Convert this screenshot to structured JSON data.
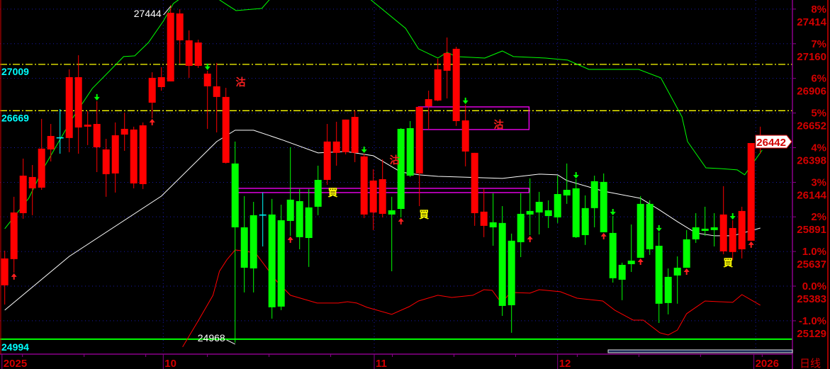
{
  "chart_data": {
    "type": "candlestick",
    "period_label": "日线",
    "colors": {
      "up": "#ff0000",
      "down": "#00ff00",
      "flat": "#00ffff",
      "ma": "#ffffff",
      "upper_band": "#00ff00",
      "lower_band": "#ff0000",
      "ref_line": "#ffff00",
      "support_line": "#00ff00",
      "zone_box": "#ff00ff",
      "grid": "#1a1aaa",
      "axis_border": "#8a008a"
    },
    "y_axis": {
      "base_price": 25383,
      "ticks": [
        {
          "pct": "8%",
          "price": "27414",
          "value": 27414
        },
        {
          "pct": "7%",
          "price": "27160",
          "value": 27160
        },
        {
          "pct": "6%",
          "price": "26906",
          "value": 26906
        },
        {
          "pct": "5%",
          "price": "26652",
          "value": 26652
        },
        {
          "pct": "4%",
          "price": "26398",
          "value": 26398
        },
        {
          "pct": "3%",
          "price": "26144",
          "value": 26144
        },
        {
          "pct": "2%",
          "price": "25891",
          "value": 25891
        },
        {
          "pct": "1.0%",
          "price": "25637",
          "value": 25637
        },
        {
          "pct": "0.0%",
          "price": "25383",
          "value": 25383
        },
        {
          "pct": "-1.0%",
          "price": "25129",
          "value": 25129
        }
      ],
      "grid": true
    },
    "x_axis": {
      "labels": [
        {
          "label": "2025",
          "index": 0.7
        },
        {
          "label": "10",
          "index": 18.2
        },
        {
          "label": "11",
          "index": 41.1
        },
        {
          "label": "12",
          "index": 61
        },
        {
          "label": "2026",
          "index": 82.3
        }
      ],
      "grid_at": [
        18.2,
        41.1,
        61,
        82.5
      ]
    },
    "current_price": {
      "label": "26442",
      "value": 26442
    },
    "candles_ohlc": [
      [
        25389,
        25643,
        25248,
        25586
      ],
      [
        25581,
        26038,
        25482,
        25923
      ],
      [
        25918,
        26318,
        25877,
        26193
      ],
      [
        26100,
        26271,
        25903,
        26183
      ],
      [
        26105,
        26609,
        26089,
        26391
      ],
      [
        26385,
        26572,
        26297,
        26484
      ],
      [
        26474,
        26681,
        26354,
        26474
      ],
      [
        26469,
        26972,
        26365,
        26915
      ],
      [
        26546,
        27076,
        26354,
        26915
      ],
      [
        26552,
        26666,
        26417,
        26567
      ],
      [
        26401,
        26739,
        26219,
        26572
      ],
      [
        26204,
        26463,
        26038,
        26385
      ],
      [
        26209,
        26583,
        26069,
        26489
      ],
      [
        26494,
        26655,
        26375,
        26536
      ],
      [
        26136,
        26552,
        26100,
        26531
      ],
      [
        26131,
        26583,
        26095,
        26562
      ],
      [
        26728,
        26951,
        26614,
        26910
      ],
      [
        26842,
        26988,
        26816,
        26915
      ],
      [
        26884,
        27444,
        26884,
        27387
      ],
      [
        27185,
        27413,
        27014,
        27382
      ],
      [
        26998,
        27258,
        26910,
        27185
      ],
      [
        26998,
        27190,
        26983,
        27169
      ],
      [
        26848,
        26962,
        26536,
        26941
      ],
      [
        26770,
        27019,
        26510,
        26848
      ],
      [
        26287,
        26837,
        26282,
        26770
      ],
      [
        26282,
        26443,
        24968,
        25814
      ],
      [
        25814,
        26043,
        25337,
        25518
      ],
      [
        25903,
        26001,
        25337,
        25513
      ],
      [
        25908,
        26069,
        25674,
        25908
      ],
      [
        25908,
        26022,
        25145,
        25228
      ],
      [
        25866,
        25980,
        25207,
        25233
      ],
      [
        26017,
        26401,
        25752,
        25861
      ],
      [
        26006,
        26095,
        25653,
        25742
      ],
      [
        25960,
        26095,
        25524,
        25736
      ],
      [
        26162,
        26266,
        25903,
        25965
      ],
      [
        26162,
        26572,
        26126,
        26443
      ],
      [
        26360,
        26588,
        26266,
        26443
      ],
      [
        26365,
        26604,
        26349,
        26604
      ],
      [
        26360,
        26671,
        26292,
        26624
      ],
      [
        25908,
        26354,
        25882,
        26334
      ],
      [
        25923,
        26240,
        25794,
        26157
      ],
      [
        25913,
        26313,
        25887,
        26167
      ],
      [
        25939,
        26038,
        25492,
        25908
      ],
      [
        26536,
        26541,
        25887,
        25949
      ],
      [
        26541,
        26593,
        26183,
        26193
      ],
      [
        26209,
        26697,
        25970,
        26697
      ],
      [
        26702,
        26816,
        26531,
        26754
      ],
      [
        26744,
        27050,
        26739,
        26972
      ],
      [
        26962,
        27206,
        26759,
        27092
      ],
      [
        26593,
        27138,
        26557,
        27123
      ],
      [
        26370,
        26713,
        26261,
        26598
      ],
      [
        25918,
        26360,
        25825,
        26360
      ],
      [
        25825,
        26095,
        25742,
        25929
      ],
      [
        25851,
        26064,
        25679,
        25814
      ],
      [
        25846,
        25970,
        25165,
        25238
      ],
      [
        25716,
        25768,
        25041,
        25243
      ],
      [
        25913,
        26064,
        25596,
        25705
      ],
      [
        25934,
        26173,
        25757,
        25908
      ],
      [
        26001,
        26074,
        25762,
        25923
      ],
      [
        25939,
        26012,
        25809,
        25897
      ],
      [
        26058,
        26193,
        25846,
        25887
      ],
      [
        26089,
        26282,
        25986,
        26048
      ],
      [
        26100,
        26167,
        25736,
        25742
      ],
      [
        25955,
        26048,
        25685,
        25757
      ],
      [
        26152,
        26193,
        25814,
        25955
      ],
      [
        26147,
        26209,
        25778,
        25778
      ],
      [
        25773,
        25897,
        25409,
        25441
      ],
      [
        25539,
        25555,
        25280,
        25430
      ],
      [
        25570,
        25835,
        25487,
        25544
      ],
      [
        25986,
        26043,
        25591,
        25591
      ],
      [
        25986,
        26012,
        25612,
        25653
      ],
      [
        25679,
        25778,
        25113,
        25254
      ],
      [
        25451,
        25513,
        25176,
        25259
      ],
      [
        25518,
        25601,
        25254,
        25461
      ],
      [
        25726,
        25794,
        25518,
        25518
      ],
      [
        25814,
        25918,
        25700,
        25726
      ],
      [
        25804,
        25965,
        25752,
        25788
      ],
      [
        25814,
        25918,
        25674,
        25794
      ],
      [
        25638,
        26116,
        25617,
        25908
      ],
      [
        25633,
        25866,
        25576,
        25809
      ],
      [
        25653,
        25965,
        25586,
        25934
      ],
      [
        25716,
        26432,
        25716,
        26432
      ],
      [
        26430,
        26552,
        26354,
        26442
      ]
    ],
    "ma_line": [
      [
        1,
        25207
      ],
      [
        8,
        25601
      ],
      [
        18,
        26043
      ],
      [
        24,
        26443
      ],
      [
        26,
        26526
      ],
      [
        28,
        26526
      ],
      [
        31,
        26458
      ],
      [
        35,
        26360
      ],
      [
        38,
        26370
      ],
      [
        41,
        26339
      ],
      [
        44,
        26219
      ],
      [
        46,
        26199
      ],
      [
        48,
        26188
      ],
      [
        55,
        26173
      ],
      [
        59,
        26204
      ],
      [
        61,
        26199
      ],
      [
        62,
        26157
      ],
      [
        66,
        26079
      ],
      [
        70,
        26027
      ],
      [
        72,
        25944
      ],
      [
        74,
        25856
      ],
      [
        76,
        25773
      ],
      [
        78,
        25752
      ],
      [
        80,
        25752
      ],
      [
        83,
        25809
      ]
    ],
    "upper_band": [
      [
        1,
        25804
      ],
      [
        3.6,
        26027
      ],
      [
        5.1,
        26235
      ],
      [
        8.2,
        26598
      ],
      [
        10.5,
        26832
      ],
      [
        12.4,
        26962
      ],
      [
        13.9,
        27066
      ],
      [
        15.1,
        27071
      ],
      [
        16.6,
        27169
      ],
      [
        18.2,
        27325
      ],
      [
        19.3,
        27455
      ],
      [
        22,
        27585
      ],
      [
        24.9,
        27455
      ],
      [
        26.1,
        27403
      ],
      [
        28.9,
        27419
      ],
      [
        29.7,
        27481
      ],
      [
        37,
        27689
      ],
      [
        44.5,
        27273
      ],
      [
        45.9,
        27123
      ],
      [
        48,
        27055
      ],
      [
        49,
        27097
      ],
      [
        50,
        27066
      ],
      [
        53.1,
        27055
      ],
      [
        55,
        27107
      ],
      [
        56.2,
        27066
      ],
      [
        59.7,
        27055
      ],
      [
        62.1,
        27040
      ],
      [
        64.4,
        26972
      ],
      [
        69.8,
        26972
      ],
      [
        72.2,
        26910
      ],
      [
        74.5,
        26624
      ],
      [
        75.1,
        26443
      ],
      [
        77.1,
        26250
      ],
      [
        78.6,
        26245
      ],
      [
        80.5,
        26235
      ],
      [
        81.3,
        26199
      ],
      [
        83.2,
        26380
      ]
    ],
    "lower_band": [
      [
        20.3,
        24937
      ],
      [
        22,
        25129
      ],
      [
        23.6,
        25316
      ],
      [
        24.3,
        25492
      ],
      [
        25.1,
        25576
      ],
      [
        26,
        25648
      ],
      [
        26.6,
        25643
      ],
      [
        28.2,
        25627
      ],
      [
        29.7,
        25492
      ],
      [
        30.5,
        25420
      ],
      [
        32,
        25316
      ],
      [
        34.9,
        25259
      ],
      [
        37.2,
        25259
      ],
      [
        38.2,
        25269
      ],
      [
        39.2,
        25259
      ],
      [
        40.3,
        25228
      ],
      [
        43,
        25176
      ],
      [
        44.9,
        25233
      ],
      [
        45.9,
        25274
      ],
      [
        48,
        25316
      ],
      [
        49.5,
        25300
      ],
      [
        51.8,
        25316
      ],
      [
        53,
        25357
      ],
      [
        53.9,
        25352
      ],
      [
        54.9,
        25259
      ],
      [
        55.9,
        25337
      ],
      [
        58,
        25332
      ],
      [
        59,
        25357
      ],
      [
        61.3,
        25342
      ],
      [
        63.1,
        25295
      ],
      [
        65.9,
        25274
      ],
      [
        67.2,
        25207
      ],
      [
        69.2,
        25134
      ],
      [
        70.3,
        25134
      ],
      [
        72.1,
        25041
      ],
      [
        73,
        25025
      ],
      [
        74,
        25061
      ],
      [
        75,
        25181
      ],
      [
        77,
        25274
      ],
      [
        80,
        25264
      ],
      [
        81,
        25321
      ],
      [
        83,
        25243
      ]
    ],
    "reference_lines": [
      {
        "label": "27009",
        "value": 27009,
        "style": "dash-dot",
        "color": "#ffff00"
      },
      {
        "label": "26669",
        "value": 26669,
        "style": "dash-dot",
        "color": "#ffff00"
      },
      {
        "label": "24994",
        "value": 24994,
        "style": "solid",
        "color": "#00ff00"
      }
    ],
    "zones": [
      {
        "from_index": 45.9,
        "to_index": 57.9,
        "top": 26697,
        "bottom": 26531
      },
      {
        "from_index": 25.9,
        "to_index": 57.9,
        "top": 26100,
        "bottom": 26069
      }
    ],
    "extreme_labels": [
      {
        "label": "27444",
        "index": 19,
        "value": 27444,
        "position": "high"
      },
      {
        "label": "24968",
        "index": 26,
        "value": 24968,
        "position": "low"
      }
    ],
    "signals": [
      {
        "text": "沽",
        "index": 26.6,
        "value": 26884,
        "color": "#ff2020"
      },
      {
        "text": "沽",
        "index": 54.6,
        "value": 26572,
        "color": "#ff2020"
      },
      {
        "text": "沽",
        "index": 43.3,
        "value": 26313,
        "color": "#ff2020"
      },
      {
        "text": "買",
        "index": 36.6,
        "value": 26074,
        "color": "#ffff00"
      },
      {
        "text": "買",
        "index": 46.5,
        "value": 25913,
        "color": "#ffff00"
      },
      {
        "text": "買",
        "index": 79.5,
        "value": 25560,
        "color": "#ffff00"
      }
    ],
    "down_arrows": [
      11,
      23,
      40,
      51,
      63,
      67,
      72,
      80
    ],
    "up_arrows": [
      2,
      17,
      32,
      44,
      58,
      66,
      70,
      75,
      82
    ]
  }
}
